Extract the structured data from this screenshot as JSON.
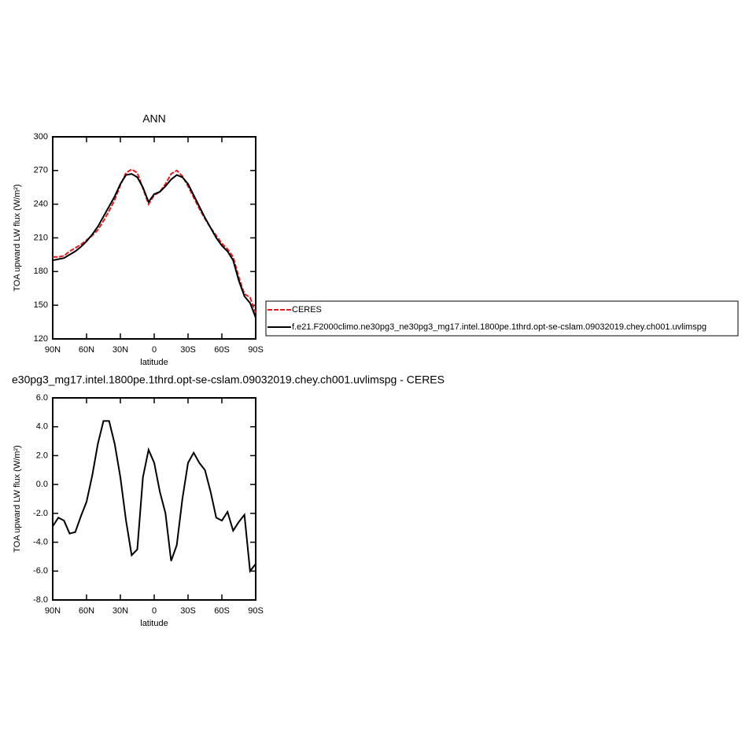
{
  "chart_data": [
    {
      "type": "line",
      "title": "ANN",
      "xlabel": "latitude",
      "ylabel": "TOA upward LW flux (W/m²)",
      "x": [
        90,
        85,
        80,
        75,
        70,
        65,
        60,
        55,
        50,
        45,
        40,
        35,
        30,
        25,
        20,
        15,
        10,
        5,
        0,
        -5,
        -10,
        -15,
        -20,
        -25,
        -30,
        -35,
        -40,
        -45,
        -50,
        -55,
        -60,
        -65,
        -70,
        -75,
        -80,
        -85,
        -90
      ],
      "series": [
        {
          "name": "CERES",
          "color": "#e41a1c",
          "dash": true,
          "values": [
            193,
            193,
            194,
            198,
            201,
            204,
            208,
            212,
            217,
            225,
            234,
            244,
            257,
            268,
            271,
            268,
            254,
            240,
            248,
            251,
            258,
            267,
            270,
            265,
            256,
            246,
            236,
            227,
            219,
            212,
            205,
            200,
            193,
            175,
            160,
            157,
            143
          ]
        },
        {
          "name": "f.e21.F2000climo.ne30pg3_ne30pg3_mg17.intel.1800pe.1thrd.opt-se-cslam.09032019.chey.ch001.uvlimspg",
          "color": "#000000",
          "dash": false,
          "values": [
            190,
            191,
            192,
            195,
            198,
            202,
            207,
            213,
            220,
            229,
            238,
            247,
            258,
            266,
            267,
            264,
            255,
            242,
            249,
            251,
            256,
            262,
            266,
            264,
            258,
            248,
            238,
            228,
            219,
            210,
            203,
            198,
            190,
            172,
            158,
            152,
            139
          ]
        }
      ],
      "xlim": [
        90,
        -90
      ],
      "xticks": [
        {
          "value": 90,
          "label": "90N"
        },
        {
          "value": 60,
          "label": "60N"
        },
        {
          "value": 30,
          "label": "30N"
        },
        0,
        {
          "value": -30,
          "label": "30S"
        },
        {
          "value": -60,
          "label": "60S"
        },
        {
          "value": -90,
          "label": "90S"
        }
      ],
      "ylim": [
        120,
        300
      ],
      "yticks": [
        120,
        150,
        180,
        210,
        240,
        270,
        300
      ]
    },
    {
      "type": "line",
      "title": "e30pg3_mg17.intel.1800pe.1thrd.opt-se-cslam.09032019.chey.ch001.uvlimspg - CERES",
      "xlabel": "latitude",
      "ylabel": "TOA upward LW flux (W/m²)",
      "x": [
        90,
        85,
        80,
        75,
        70,
        65,
        60,
        55,
        50,
        45,
        40,
        35,
        30,
        25,
        20,
        15,
        10,
        5,
        0,
        -5,
        -10,
        -15,
        -20,
        -25,
        -30,
        -35,
        -40,
        -45,
        -50,
        -55,
        -60,
        -65,
        -70,
        -75,
        -80,
        -85,
        -90
      ],
      "series": [
        {
          "color": "#000000",
          "dash": false,
          "values": [
            -2.9,
            -2.3,
            -2.5,
            -3.4,
            -3.3,
            -2.2,
            -1.2,
            0.6,
            2.8,
            4.4,
            4.4,
            2.8,
            0.5,
            -2.5,
            -4.9,
            -4.5,
            0.5,
            2.4,
            1.5,
            -0.5,
            -2.0,
            -5.3,
            -4.2,
            -1.0,
            1.5,
            2.2,
            1.5,
            1.0,
            -0.5,
            -2.3,
            -2.5,
            -1.9,
            -3.2,
            -2.6,
            -2.1,
            -6.0,
            -5.5
          ]
        }
      ],
      "xlim": [
        90,
        -90
      ],
      "xticks": [
        {
          "value": 90,
          "label": "90N"
        },
        {
          "value": 60,
          "label": "60N"
        },
        {
          "value": 30,
          "label": "30N"
        },
        0,
        {
          "value": -30,
          "label": "30S"
        },
        {
          "value": -60,
          "label": "60S"
        },
        {
          "value": -90,
          "label": "90S"
        }
      ],
      "ylim": [
        -8,
        6
      ],
      "yticks": [
        {
          "value": -8,
          "label": "-8.0"
        },
        {
          "value": -6,
          "label": "-6.0"
        },
        {
          "value": -4,
          "label": "-4.0"
        },
        {
          "value": -2,
          "label": "-2.0"
        },
        {
          "value": 0,
          "label": "0.0"
        },
        {
          "value": 2,
          "label": "2.0"
        },
        {
          "value": 4,
          "label": "4.0"
        },
        {
          "value": 6,
          "label": "6.0"
        }
      ]
    }
  ]
}
